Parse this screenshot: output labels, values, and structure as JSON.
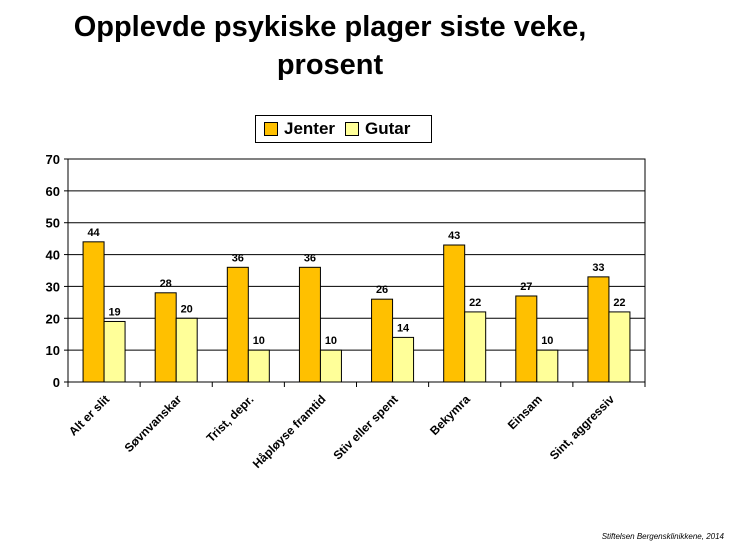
{
  "chart_data": {
    "type": "bar",
    "title": "Opplevde psykiske plager siste veke,\nprosent",
    "categories": [
      "Alt er slit",
      "Søvnvanskar",
      "Trist, depr.",
      "Håpløyse framtid",
      "Stiv eller spent",
      "Bekymra",
      "Einsam",
      "Sint, aggressiv"
    ],
    "series": [
      {
        "name": "Jenter",
        "color": "#FFC000",
        "values": [
          44,
          28,
          36,
          36,
          26,
          43,
          27,
          33
        ]
      },
      {
        "name": "Gutar",
        "color": "#FFFF99",
        "values": [
          19,
          20,
          10,
          10,
          14,
          22,
          10,
          22
        ]
      }
    ],
    "ylim": [
      0,
      70
    ],
    "yticks": [
      0,
      10,
      20,
      30,
      40,
      50,
      60,
      70
    ],
    "grid": true,
    "legend_position": "top-center",
    "data_labels": true
  },
  "footer": "Stiftelsen Bergensklinikkene, 2014"
}
